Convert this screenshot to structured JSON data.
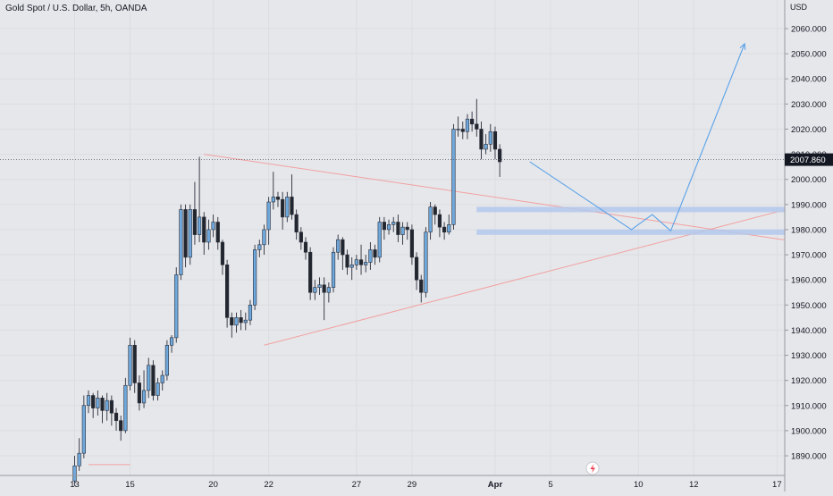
{
  "header": {
    "title": "Gold Spot / U.S. Dollar, 5h, OANDA",
    "currency": "USD"
  },
  "price_badge": {
    "value": "2007.860"
  },
  "colors": {
    "background": "#e6e7eb",
    "bull_body": "#6ea8dc",
    "bear_body": "#22262f",
    "wick": "#2a2e39",
    "trendline": "#f2a0a0",
    "zone": "#b3c8ec",
    "projection": "#5aa2e8",
    "axis_text": "#131722",
    "badge_bg": "#131722",
    "badge_text": "#ffffff"
  },
  "chart_data": {
    "type": "candlestick",
    "title": "Gold Spot / U.S. Dollar, 5h, OANDA",
    "ylabel": "USD",
    "ylim": [
      1886,
      2064
    ],
    "y_ticks": [
      "1890.000",
      "1900.000",
      "1910.000",
      "1920.000",
      "1930.000",
      "1940.000",
      "1950.000",
      "1960.000",
      "1970.000",
      "1980.000",
      "1990.000",
      "2000.000",
      "2010.000",
      "2020.000",
      "2030.000",
      "2040.000",
      "2050.000",
      "2060.000"
    ],
    "x_ticks": [
      {
        "label": "13",
        "bar": 1
      },
      {
        "label": "15",
        "bar": 13
      },
      {
        "label": "20",
        "bar": 31
      },
      {
        "label": "22",
        "bar": 43
      },
      {
        "label": "27",
        "bar": 62
      },
      {
        "label": "29",
        "bar": 74
      },
      {
        "label": "Apr",
        "bar": 92
      },
      {
        "label": "5",
        "bar": 104
      },
      {
        "label": "10",
        "bar": 123
      },
      {
        "label": "12",
        "bar": 135
      },
      {
        "label": "17",
        "bar": 153
      }
    ],
    "candles": [
      [
        1880,
        1886,
        1878,
        1890
      ],
      [
        1886,
        1891,
        1884,
        1897
      ],
      [
        1891,
        1910,
        1889,
        1914
      ],
      [
        1910,
        1914,
        1907,
        1916
      ],
      [
        1914,
        1909,
        1905,
        1915
      ],
      [
        1909,
        1913,
        1906,
        1916
      ],
      [
        1913,
        1908,
        1903,
        1914
      ],
      [
        1908,
        1912,
        1904,
        1915
      ],
      [
        1912,
        1907,
        1902,
        1914
      ],
      [
        1907,
        1904,
        1900,
        1909
      ],
      [
        1904,
        1900,
        1896,
        1906
      ],
      [
        1900,
        1918,
        1899,
        1921
      ],
      [
        1918,
        1934,
        1916,
        1937
      ],
      [
        1934,
        1919,
        1915,
        1936
      ],
      [
        1919,
        1911,
        1908,
        1922
      ],
      [
        1911,
        1916,
        1909,
        1924
      ],
      [
        1916,
        1926,
        1913,
        1929
      ],
      [
        1926,
        1914,
        1912,
        1928
      ],
      [
        1914,
        1919,
        1912,
        1921
      ],
      [
        1919,
        1922,
        1916,
        1924
      ],
      [
        1922,
        1934,
        1920,
        1936
      ],
      [
        1934,
        1937,
        1931,
        1938
      ],
      [
        1937,
        1962,
        1935,
        1965
      ],
      [
        1962,
        1988,
        1960,
        1990
      ],
      [
        1988,
        1969,
        1965,
        1990
      ],
      [
        1969,
        1988,
        1966,
        1990
      ],
      [
        1988,
        1978,
        1974,
        1999
      ],
      [
        1978,
        1985,
        1975,
        2009
      ],
      [
        1985,
        1975,
        1970,
        1987
      ],
      [
        1975,
        1980,
        1972,
        1984
      ],
      [
        1980,
        1983,
        1977,
        1986
      ],
      [
        1983,
        1975,
        1972,
        1985
      ],
      [
        1975,
        1966,
        1962,
        1976
      ],
      [
        1966,
        1945,
        1941,
        1968
      ],
      [
        1945,
        1942,
        1937,
        1947
      ],
      [
        1942,
        1945,
        1939,
        1947
      ],
      [
        1945,
        1943,
        1940,
        1948
      ],
      [
        1943,
        1944,
        1940,
        1947
      ],
      [
        1944,
        1950,
        1942,
        1952
      ],
      [
        1950,
        1972,
        1948,
        1974
      ],
      [
        1972,
        1974,
        1969,
        1976
      ],
      [
        1974,
        1980,
        1970,
        1982
      ],
      [
        1980,
        1991,
        1974,
        1993
      ],
      [
        1991,
        1993,
        1988,
        2003
      ],
      [
        1993,
        1992,
        1989,
        1995
      ],
      [
        1992,
        1985,
        1980,
        1995
      ],
      [
        1985,
        1993,
        1983,
        1995
      ],
      [
        1993,
        1986,
        1984,
        2002
      ],
      [
        1986,
        1979,
        1976,
        1988
      ],
      [
        1979,
        1975,
        1972,
        1981
      ],
      [
        1975,
        1971,
        1968,
        1977
      ],
      [
        1971,
        1955,
        1952,
        1973
      ],
      [
        1955,
        1957,
        1952,
        1960
      ],
      [
        1957,
        1958,
        1954,
        1961
      ],
      [
        1958,
        1955,
        1944,
        1961
      ],
      [
        1955,
        1957,
        1951,
        1959
      ],
      [
        1957,
        1971,
        1955,
        1973
      ],
      [
        1971,
        1976,
        1968,
        1978
      ],
      [
        1976,
        1970,
        1964,
        1977
      ],
      [
        1970,
        1965,
        1962,
        1972
      ],
      [
        1965,
        1966,
        1960,
        1969
      ],
      [
        1966,
        1968,
        1964,
        1970
      ],
      [
        1968,
        1966,
        1962,
        1974
      ],
      [
        1966,
        1967,
        1963,
        1970
      ],
      [
        1967,
        1972,
        1964,
        1975
      ],
      [
        1972,
        1969,
        1966,
        1974
      ],
      [
        1969,
        1983,
        1967,
        1985
      ],
      [
        1983,
        1980,
        1976,
        1985
      ],
      [
        1980,
        1982,
        1978,
        1984
      ],
      [
        1982,
        1983,
        1979,
        1985
      ],
      [
        1983,
        1978,
        1975,
        1986
      ],
      [
        1978,
        1981,
        1974,
        1983
      ],
      [
        1981,
        1980,
        1976,
        1983
      ],
      [
        1980,
        1969,
        1966,
        1982
      ],
      [
        1969,
        1960,
        1956,
        1971
      ],
      [
        1960,
        1955,
        1951,
        1962
      ],
      [
        1955,
        1979,
        1953,
        1981
      ],
      [
        1979,
        1989,
        1976,
        1991
      ],
      [
        1989,
        1986,
        1982,
        1990
      ],
      [
        1986,
        1981,
        1977,
        1988
      ],
      [
        1981,
        1979,
        1976,
        1983
      ],
      [
        1979,
        1982,
        1978,
        1986
      ],
      [
        1982,
        2020,
        1980,
        2022
      ],
      [
        2020,
        2020,
        2017,
        2025
      ],
      [
        2020,
        2019,
        2016,
        2023
      ],
      [
        2019,
        2024,
        2016,
        2026
      ],
      [
        2024,
        2022,
        2019,
        2027
      ],
      [
        2022,
        2020,
        2017,
        2032
      ],
      [
        2020,
        2012,
        2008,
        2023
      ],
      [
        2012,
        2014,
        2010,
        2018
      ],
      [
        2014,
        2019,
        2011,
        2022
      ],
      [
        2019,
        2012,
        2008,
        2021
      ],
      [
        2012,
        2007,
        2001,
        2014
      ]
    ],
    "trendlines": [
      {
        "kind": "descending",
        "from": {
          "bar": 29,
          "price": 2010
        },
        "to": {
          "bar": 158,
          "price": 1975
        }
      },
      {
        "kind": "ascending",
        "from": {
          "bar": 42,
          "price": 1934
        },
        "to": {
          "bar": 155,
          "price": 1988
        }
      },
      {
        "kind": "baseline",
        "from": {
          "bar": 4,
          "price": 1886.5
        },
        "to": {
          "bar": 13,
          "price": 1886.5
        }
      }
    ],
    "zones": [
      {
        "from_bar": 88,
        "to_bar": 155,
        "price": 1988
      },
      {
        "from_bar": 88,
        "to_bar": 155,
        "price": 1979
      }
    ],
    "projection": [
      {
        "bar": 99.5,
        "price": 2007
      },
      {
        "bar": 121.5,
        "price": 1980
      },
      {
        "bar": 126,
        "price": 1986
      },
      {
        "bar": 130,
        "price": 1979.5
      },
      {
        "bar": 146,
        "price": 2054
      }
    ],
    "last_price": 2007.86
  }
}
